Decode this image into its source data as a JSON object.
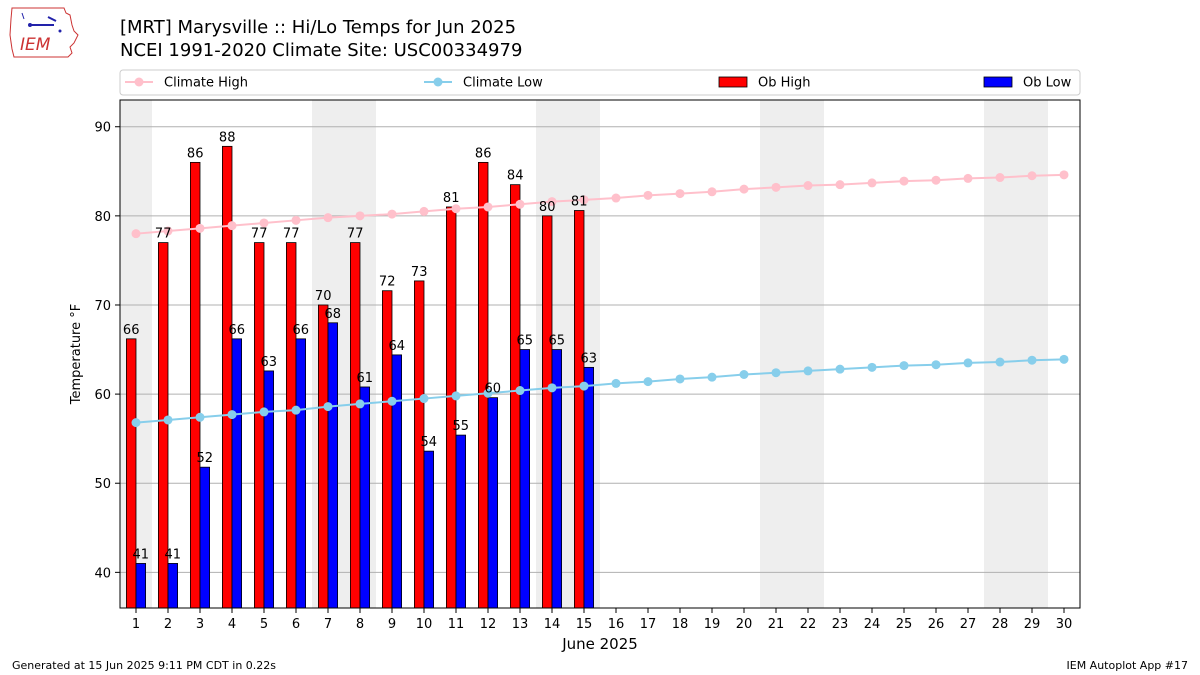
{
  "header": {
    "title_line1": "[MRT] Marysville :: Hi/Lo Temps for Jun 2025",
    "title_line2": "NCEI 1991-2020 Climate Site: USC00334979",
    "logo_text": "IEM"
  },
  "footer": {
    "left": "Generated at 15 Jun 2025 9:11 PM CDT in 0.22s",
    "right": "IEM Autoplot App #17"
  },
  "colors": {
    "climate_high": "#ffc0cb",
    "climate_low": "#87ceeb",
    "ob_high": "#ff0000",
    "ob_low": "#0000ff",
    "weekend_shade": "#eeeeee",
    "grid": "#b0b0b0"
  },
  "chart_data": {
    "type": "bar",
    "xlabel": "June 2025",
    "ylabel": "Temperature °F",
    "xlim": [
      0.5,
      30.5
    ],
    "ylim": [
      36,
      93
    ],
    "yticks": [
      40,
      50,
      60,
      70,
      80,
      90
    ],
    "grid": "horizontal",
    "legend_position": "top",
    "shaded_days": [
      1,
      7,
      8,
      14,
      15,
      21,
      22,
      28,
      29
    ],
    "days": [
      1,
      2,
      3,
      4,
      5,
      6,
      7,
      8,
      9,
      10,
      11,
      12,
      13,
      14,
      15,
      16,
      17,
      18,
      19,
      20,
      21,
      22,
      23,
      24,
      25,
      26,
      27,
      28,
      29,
      30
    ],
    "series": [
      {
        "name": "Climate High",
        "type": "line",
        "values": [
          78.0,
          78.3,
          78.6,
          78.9,
          79.2,
          79.5,
          79.8,
          80.0,
          80.2,
          80.5,
          80.8,
          81.0,
          81.3,
          81.6,
          81.8,
          82.0,
          82.3,
          82.5,
          82.7,
          83.0,
          83.2,
          83.4,
          83.5,
          83.7,
          83.9,
          84.0,
          84.2,
          84.3,
          84.5,
          84.6
        ]
      },
      {
        "name": "Climate Low",
        "type": "line",
        "values": [
          56.8,
          57.1,
          57.4,
          57.7,
          58.0,
          58.2,
          58.6,
          58.9,
          59.2,
          59.5,
          59.8,
          60.1,
          60.4,
          60.7,
          60.9,
          61.2,
          61.4,
          61.7,
          61.9,
          62.2,
          62.4,
          62.6,
          62.8,
          63.0,
          63.2,
          63.3,
          63.5,
          63.6,
          63.8,
          63.9
        ]
      },
      {
        "name": "Ob High",
        "type": "bar",
        "values": [
          66.2,
          77.0,
          86.0,
          87.8,
          77.0,
          77.0,
          70.0,
          77.0,
          71.6,
          72.7,
          81.0,
          86.0,
          83.5,
          80.0,
          80.6
        ],
        "labels": [
          "66",
          "77",
          "86",
          "88",
          "77",
          "77",
          "70",
          "77",
          "72",
          "73",
          "81",
          "86",
          "84",
          "80",
          "81"
        ]
      },
      {
        "name": "Ob Low",
        "type": "bar",
        "values": [
          41.0,
          41.0,
          51.8,
          66.2,
          62.6,
          66.2,
          68.0,
          60.8,
          64.4,
          53.6,
          55.4,
          59.6,
          65.0,
          65.0,
          63.0
        ],
        "labels": [
          "41",
          "41",
          "52",
          "66",
          "63",
          "66",
          "68",
          "61",
          "64",
          "54",
          "55",
          "60",
          "65",
          "65",
          "63"
        ]
      }
    ]
  }
}
